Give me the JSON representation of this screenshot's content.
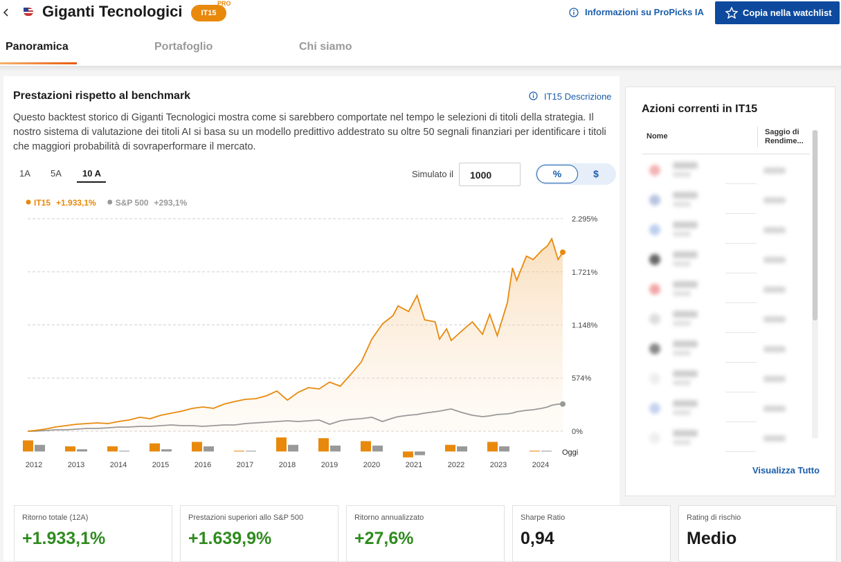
{
  "header": {
    "title": "Giganti Tecnologici",
    "badge": "IT15",
    "badge_sup": "PRO",
    "info_link": "Informazioni su ProPicks IA",
    "watchlist_button": "Copia nella watchlist"
  },
  "tabs": [
    "Panoramica",
    "Portafoglio",
    "Chi siamo"
  ],
  "performance": {
    "title": "Prestazioni rispetto al benchmark",
    "description_link": "IT15 Descrizione",
    "description": "Questo backtest storico di Giganti Tecnologici mostra come si sarebbero comportate nel tempo le selezioni di titoli della strategia. Il nostro sistema di valutazione dei titoli AI si basa su un modello predittivo addestrato su oltre 50 segnali finanziari per identificare i titoli che maggiori probabilità di sovraperformare il mercato.",
    "periods": [
      "1A",
      "5A",
      "10 A"
    ],
    "simulate_label": "Simulato il",
    "simulate_value": "1000",
    "units": [
      "%",
      "$"
    ]
  },
  "chart_data": [
    {
      "type": "line",
      "x": [
        2011.85,
        2012.0,
        2012.25,
        2012.5,
        2012.75,
        2013.0,
        2013.25,
        2013.5,
        2013.75,
        2014.0,
        2014.25,
        2014.5,
        2014.75,
        2015.0,
        2015.25,
        2015.5,
        2015.75,
        2016.0,
        2016.25,
        2016.5,
        2016.75,
        2017.0,
        2017.25,
        2017.5,
        2017.75,
        2018.0,
        2018.25,
        2018.5,
        2018.75,
        2019.0,
        2019.25,
        2019.5,
        2019.75,
        2020.0,
        2020.25,
        2020.5,
        2020.62,
        2020.87,
        2021.07,
        2021.25,
        2021.5,
        2021.6,
        2021.77,
        2021.88,
        2022.13,
        2022.38,
        2022.62,
        2022.79,
        2022.97,
        2023.21,
        2023.33,
        2023.43,
        2023.66,
        2023.82,
        2024.02,
        2024.16,
        2024.26,
        2024.41,
        2024.52
      ],
      "xlim": [
        2011.85,
        2024.52
      ],
      "ylim": [
        0,
        2295
      ],
      "yticks": [
        {
          "value": 2295,
          "label": "2.295%"
        },
        {
          "value": 1721,
          "label": "1.721%"
        },
        {
          "value": 1148,
          "label": "1.148%"
        },
        {
          "value": 574,
          "label": "574%"
        },
        {
          "value": 0,
          "label": "0%"
        }
      ],
      "grid": true,
      "series": [
        {
          "name": "IT15",
          "legend_value": "+1.933,1%",
          "color": "#e8890c",
          "values": [
            0,
            7,
            22,
            45,
            60,
            75,
            82,
            90,
            82,
            105,
            120,
            150,
            135,
            172,
            194,
            217,
            247,
            262,
            247,
            292,
            321,
            344,
            351,
            381,
            434,
            336,
            419,
            471,
            456,
            531,
            486,
            613,
            748,
            994,
            1159,
            1248,
            1353,
            1293,
            1465,
            1203,
            1181,
            994,
            1106,
            979,
            1084,
            1181,
            1047,
            1263,
            1032,
            1391,
            1764,
            1630,
            1891,
            1854,
            1951,
            2003,
            2078,
            1854,
            1933.1
          ]
        },
        {
          "name": "S&P 500",
          "legend_value": "+293,1%",
          "color": "#999999",
          "values": [
            0,
            0,
            7,
            15,
            15,
            22,
            30,
            30,
            37,
            45,
            45,
            52,
            52,
            60,
            67,
            60,
            60,
            52,
            60,
            67,
            67,
            82,
            90,
            97,
            105,
            112,
            105,
            112,
            120,
            75,
            112,
            127,
            135,
            150,
            105,
            142,
            157,
            172,
            180,
            195,
            210,
            217,
            232,
            240,
            202,
            172,
            157,
            165,
            180,
            187,
            195,
            210,
            225,
            232,
            247,
            262,
            280,
            292,
            293.1
          ]
        }
      ]
    },
    {
      "type": "bar",
      "categories": [
        "2012",
        "2013",
        "2014",
        "2015",
        "2016",
        "2017",
        "2018",
        "2019",
        "2020",
        "2021",
        "2022",
        "2023",
        "2024"
      ],
      "annotation": "Oggi",
      "ylim": [
        -100,
        200
      ],
      "series": [
        {
          "color": "#e8890c",
          "values": [
            150,
            70,
            70,
            110,
            130,
            10,
            190,
            180,
            140,
            -80,
            90,
            130,
            10
          ]
        },
        {
          "color": "#999999",
          "values": [
            90,
            30,
            10,
            30,
            70,
            10,
            90,
            80,
            80,
            -50,
            70,
            70,
            10
          ]
        }
      ]
    }
  ],
  "holdings": {
    "title": "Azioni correnti in IT15",
    "columns": [
      "Nome",
      "Saggio di Rendime..."
    ],
    "view_all": "Visualizza Tutto"
  },
  "metrics": [
    {
      "label": "Ritorno totale (12A)",
      "value": "+1.933,1%"
    },
    {
      "label": "Prestazioni superiori allo S&P 500",
      "value": "+1.639,9%"
    },
    {
      "label": "Ritorno annualizzato",
      "value": "+27,6%"
    },
    {
      "label": "Sharpe Ratio",
      "value": "0,94"
    },
    {
      "label": "Rating di rischio",
      "value": "Medio"
    }
  ]
}
